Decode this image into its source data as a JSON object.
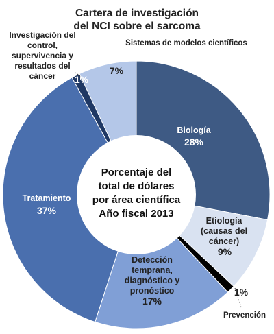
{
  "chart_data": {
    "type": "donut",
    "title": [
      "Cartera de investigación",
      "del NCI sobre el sarcoma"
    ],
    "center_label": [
      "Porcentaje del",
      "total de dólares",
      "por área científica",
      "Año fiscal 2013"
    ],
    "categories": [
      "Biología",
      "Etiología (causas del cáncer)",
      "Prevención",
      "Detección temprana, diagnóstico y pronóstico",
      "Tratamiento",
      "Investigación del control, supervivencia y resultados del cáncer",
      "Sistemas de modelos científicos"
    ],
    "values": [
      28,
      9,
      1,
      17,
      37,
      1,
      7
    ],
    "value_labels": [
      "28%",
      "9%",
      "1%",
      "17%",
      "37%",
      "1%",
      "7%"
    ],
    "colors": [
      "#3e5a84",
      "#d9e2f1",
      "#000000",
      "#809fd6",
      "#4a6fae",
      "#1f3864",
      "#b4c7e8"
    ]
  }
}
